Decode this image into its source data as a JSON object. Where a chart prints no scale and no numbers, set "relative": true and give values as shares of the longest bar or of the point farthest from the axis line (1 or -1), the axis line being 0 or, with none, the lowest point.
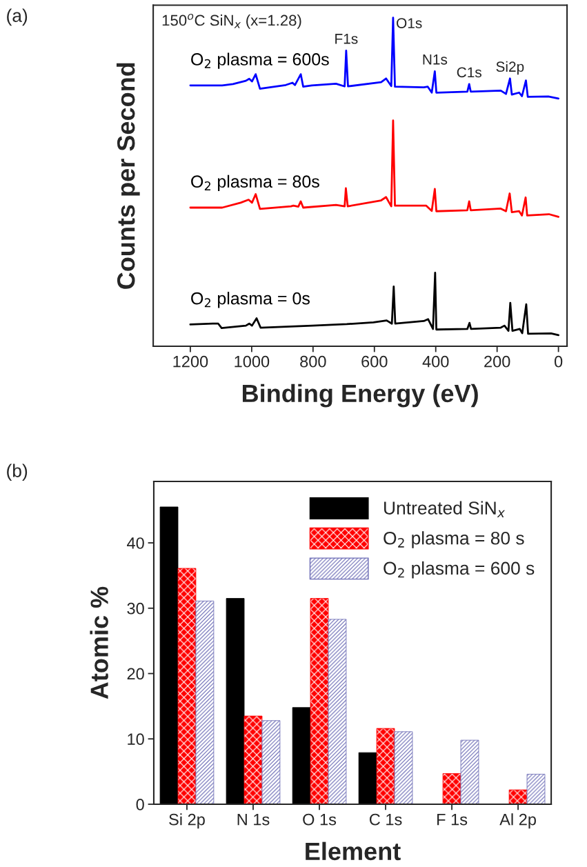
{
  "chart_data": [
    {
      "type": "line",
      "relative": true,
      "xlabel": "Binding Energy (eV)",
      "ylabel": "Counts per Second",
      "xlim": [
        1321,
        -28
      ],
      "xticks": [
        1200,
        1000,
        800,
        600,
        400,
        200,
        0
      ],
      "grid": false,
      "legend": false,
      "marker": "none",
      "line_style": "solid",
      "annotations": [
        "(a)",
        "150$^{o}$C SiN$_{x}$ (x=1.28)",
        {
          "text": "F1s",
          "x": 692,
          "y": 0.9
        },
        {
          "text": "O1s",
          "x": 539,
          "y": 1.0
        },
        {
          "text": "N1s",
          "x": 403,
          "y": 0.837
        },
        {
          "text": "C1s",
          "x": 291,
          "y": 0.798
        },
        {
          "text": "Si2p",
          "x": 158,
          "y": 0.815
        }
      ],
      "series": [
        {
          "name": "O$_{2}$ plasma = 600s",
          "color": "#0000ff",
          "x": [
            1200,
            1096,
            1061,
            1019,
            1008,
            999,
            987,
            973,
            889,
            867,
            859,
            840,
            832,
            804,
            725,
            697,
            692,
            686,
            578,
            562,
            545,
            539,
            533,
            439,
            426,
            413,
            403,
            398,
            297,
            291,
            286,
            188,
            171,
            158,
            152,
            128,
            119,
            106,
            100,
            33,
            0
          ],
          "values": [
            0.794,
            0.794,
            0.798,
            0.808,
            0.814,
            0.806,
            0.828,
            0.784,
            0.795,
            0.802,
            0.795,
            0.828,
            0.79,
            0.794,
            0.799,
            0.791,
            0.9,
            0.791,
            0.804,
            0.815,
            0.792,
            1.0,
            0.79,
            0.788,
            0.79,
            0.772,
            0.837,
            0.772,
            0.775,
            0.798,
            0.775,
            0.778,
            0.768,
            0.815,
            0.766,
            0.772,
            0.761,
            0.809,
            0.759,
            0.76,
            0.754
          ]
        },
        {
          "name": "O$_{2}$ plasma = 80s",
          "color": "#ff0000",
          "x": [
            1200,
            1096,
            1036,
            1010,
            999,
            987,
            973,
            872,
            864,
            848,
            840,
            832,
            725,
            697,
            693,
            687,
            578,
            562,
            545,
            539,
            533,
            431,
            413,
            403,
            398,
            297,
            291,
            286,
            188,
            171,
            159,
            152,
            128,
            119,
            107,
            102,
            31,
            0
          ],
          "values": [
            0.422,
            0.422,
            0.437,
            0.446,
            0.437,
            0.463,
            0.418,
            0.426,
            0.428,
            0.425,
            0.441,
            0.422,
            0.43,
            0.426,
            0.481,
            0.426,
            0.444,
            0.454,
            0.426,
            0.687,
            0.428,
            0.428,
            0.412,
            0.479,
            0.411,
            0.414,
            0.441,
            0.414,
            0.419,
            0.411,
            0.465,
            0.408,
            0.411,
            0.398,
            0.453,
            0.398,
            0.402,
            0.394
          ]
        },
        {
          "name": "O$_{2}$ plasma = 0s",
          "color": "#000000",
          "x": [
            1200,
            1127,
            1109,
            1098,
            1019,
            1008,
            999,
            984,
            971,
            802,
            690,
            603,
            560,
            543,
            537,
            532,
            439,
            425,
            409,
            402,
            398,
            297,
            290,
            285,
            188,
            176,
            163,
            157,
            150,
            126,
            118,
            105,
            99,
            24,
            0
          ],
          "values": [
            0.0664,
            0.0689,
            0.0689,
            0.0555,
            0.0628,
            0.0689,
            0.0628,
            0.0851,
            0.0567,
            0.0628,
            0.0674,
            0.0729,
            0.0785,
            0.0689,
            0.182,
            0.0689,
            0.0769,
            0.0825,
            0.0527,
            0.224,
            0.051,
            0.0527,
            0.0712,
            0.0527,
            0.0567,
            0.0628,
            0.0471,
            0.132,
            0.0471,
            0.0527,
            0.04,
            0.128,
            0.0383,
            0.0391,
            0.0339
          ]
        }
      ]
    },
    {
      "type": "bar",
      "xlabel": "Element",
      "ylabel": "Atomic %",
      "categories": [
        "Si 2p",
        "N 1s",
        "O 1s",
        "C 1s",
        "F 1s",
        "Al 2p"
      ],
      "ylim": [
        0,
        49.4
      ],
      "yticks": [
        0,
        10,
        20,
        30,
        40
      ],
      "grid": false,
      "legend": "top right",
      "annotations": [
        "(b)"
      ],
      "series": [
        {
          "name": "Untreated SiN$_{x}$",
          "color": "#000000",
          "values": [
            45.5,
            31.5,
            14.8,
            7.9,
            null,
            null
          ]
        },
        {
          "name": "O$_{2}$ plasma = 80 s",
          "color": "#ff0000",
          "values": [
            36.1,
            13.5,
            31.5,
            11.6,
            4.7,
            2.2
          ]
        },
        {
          "name": "O$_{2}$ plasma = 600 s",
          "color": "#6b6bb5",
          "values": [
            31.1,
            12.8,
            28.3,
            11.1,
            9.8,
            4.6
          ]
        }
      ]
    }
  ]
}
